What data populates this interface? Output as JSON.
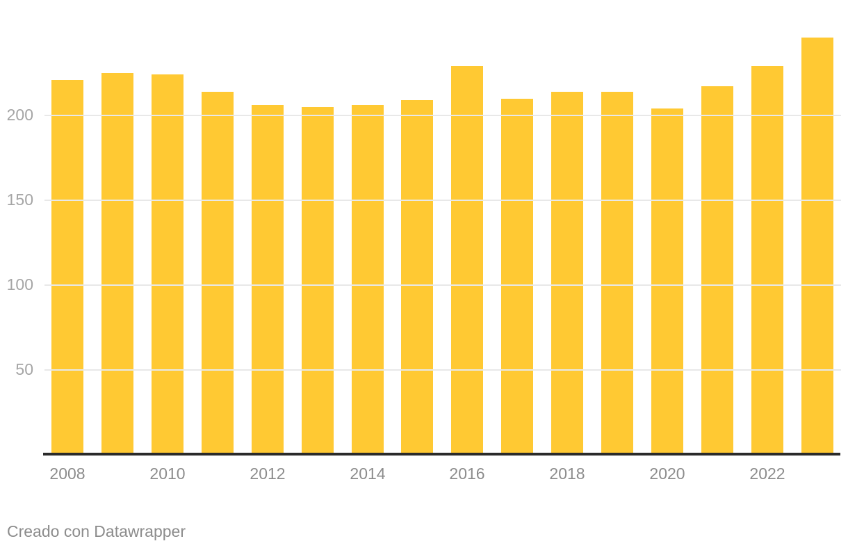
{
  "chart_data": {
    "type": "bar",
    "title": "",
    "xlabel": "",
    "ylabel": "",
    "categories": [
      "2008",
      "2009",
      "2010",
      "2011",
      "2012",
      "2013",
      "2014",
      "2015",
      "2016",
      "2017",
      "2018",
      "2019",
      "2020",
      "2021",
      "2022",
      "2023"
    ],
    "values": [
      221,
      225,
      224,
      214,
      206,
      205,
      206,
      209,
      229,
      210,
      214,
      214,
      204,
      217,
      229,
      246
    ],
    "x_tick_labels": [
      "2008",
      "2010",
      "2012",
      "2014",
      "2016",
      "2018",
      "2020",
      "2022"
    ],
    "y_ticks": [
      50,
      100,
      150,
      200
    ],
    "ylim": [
      0,
      268
    ],
    "grid": true,
    "legend": "none",
    "bar_color": "#ffc933"
  },
  "colors": {
    "background": "#ffffff",
    "bar": "#ffc933",
    "grid_line": "#e8e8e8",
    "axis_line": "#2b2b2b",
    "y_tick_text": "#a5a5a5",
    "x_tick_text": "#8c8c8c",
    "footer_text": "#8c8c8c"
  },
  "footer": {
    "attribution": "Creado con Datawrapper"
  }
}
